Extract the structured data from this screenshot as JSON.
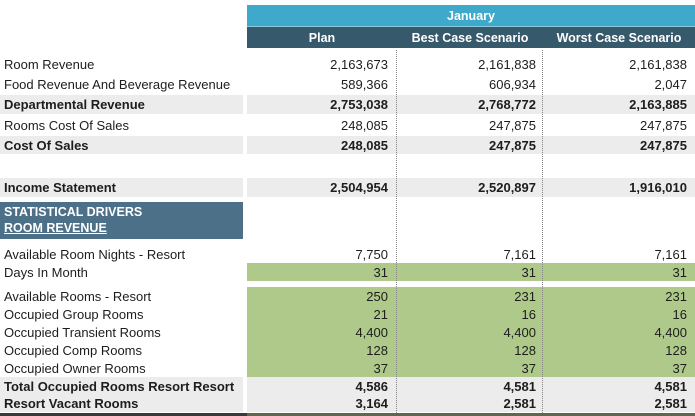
{
  "table": {
    "month_header": "January",
    "columns": {
      "plan": "Plan",
      "best": "Best Case Scenario",
      "worst": "Worst Case Scenario"
    },
    "section_band": {
      "line1": "STATISTICAL DRIVERS",
      "line2": "ROOM REVENUE"
    },
    "rows": [
      {
        "label": "Room Revenue",
        "plan": "2,163,673",
        "best": "2,161,838",
        "worst": "2,161,838"
      },
      {
        "label": "Food Revenue And Beverage Revenue",
        "plan": "589,366",
        "best": "606,934",
        "worst": "2,047"
      },
      {
        "label": "Departmental Revenue",
        "plan": "2,753,038",
        "best": "2,768,772",
        "worst": "2,163,885"
      },
      {
        "label": "Rooms Cost Of Sales",
        "plan": "248,085",
        "best": "247,875",
        "worst": "247,875"
      },
      {
        "label": "Cost Of Sales",
        "plan": "248,085",
        "best": "247,875",
        "worst": "247,875"
      },
      {
        "label": "Income Statement",
        "plan": "2,504,954",
        "best": "2,520,897",
        "worst": "1,916,010"
      },
      {
        "label": "Available Room Nights - Resort",
        "plan": "7,750",
        "best": "7,161",
        "worst": "7,161"
      },
      {
        "label": "Days In Month",
        "plan": "31",
        "best": "31",
        "worst": "31"
      },
      {
        "label": "Available Rooms - Resort",
        "plan": "250",
        "best": "231",
        "worst": "231"
      },
      {
        "label": "Occupied Group Rooms",
        "plan": "21",
        "best": "16",
        "worst": "16"
      },
      {
        "label": "Occupied Transient Rooms",
        "plan": "4,400",
        "best": "4,400",
        "worst": "4,400"
      },
      {
        "label": "Occupied Comp Rooms",
        "plan": "128",
        "best": "128",
        "worst": "128"
      },
      {
        "label": "Occupied Owner Rooms",
        "plan": "37",
        "best": "37",
        "worst": "37"
      },
      {
        "label": "Total Occupied Rooms Resort Resort",
        "plan": "4,586",
        "best": "4,581",
        "worst": "4,581"
      },
      {
        "label": "Resort Vacant Rooms",
        "plan": "3,164",
        "best": "2,581",
        "worst": "2,581"
      }
    ],
    "colors": {
      "month_band": "#3FA9CB",
      "column_band": "#36596C",
      "section_band": "#4B7088",
      "highlight_green": "#AFC98A",
      "highlight_gray": "#ECECEC"
    }
  }
}
